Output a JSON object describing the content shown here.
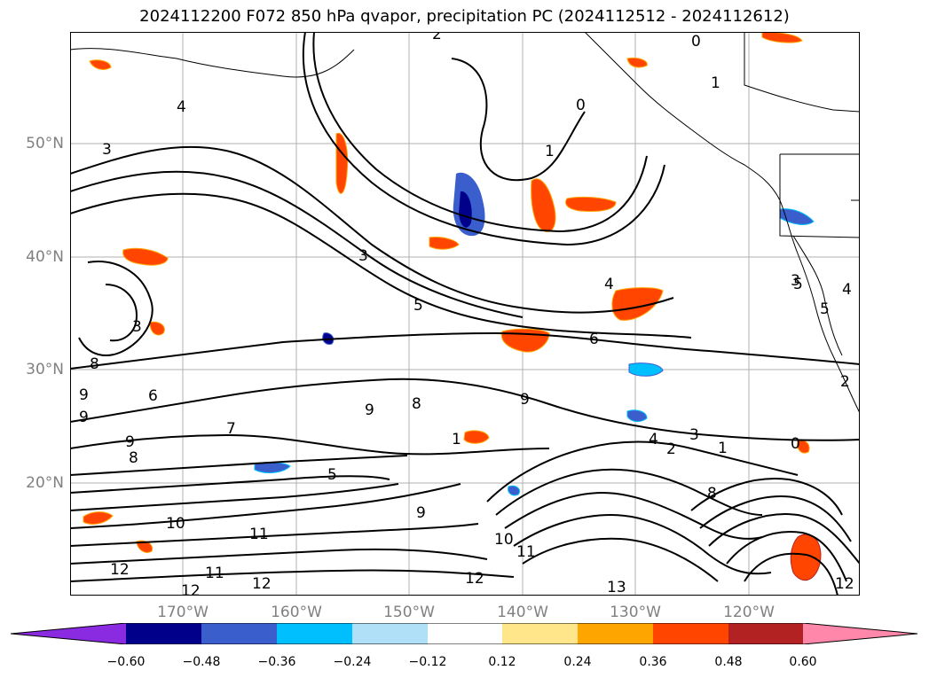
{
  "title": "2024112200 F072 850 hPa qvapor, precipitation PC (2024112512 - 2024112612)",
  "latitude_labels": [
    "50°N",
    "40°N",
    "30°N",
    "20°N"
  ],
  "longitude_labels": [
    "170°W",
    "160°W",
    "150°W",
    "140°W",
    "130°W",
    "120°W"
  ],
  "colorbar": {
    "ticks": [
      "−0.60",
      "−0.48",
      "−0.36",
      "−0.24",
      "−0.12",
      "0.12",
      "0.24",
      "0.36",
      "0.48",
      "0.60"
    ],
    "colors": [
      "#8a2be2",
      "#00008b",
      "#3a5fcd",
      "#00bfff",
      "#b0e0f8",
      "#ffffff",
      "#ffe68a",
      "#ffa500",
      "#ff4500",
      "#b22222",
      "#ff88aa"
    ]
  },
  "contour_labels": [
    "2",
    "0",
    "1",
    "0",
    "1",
    "4",
    "3",
    "3",
    "4",
    "3",
    "5",
    "6",
    "8",
    "9",
    "9",
    "6",
    "8",
    "9",
    "7",
    "5",
    "4",
    "3",
    "2",
    "1",
    "0",
    "9",
    "9",
    "8",
    "1",
    "10",
    "11",
    "12",
    "11",
    "12",
    "12",
    "10",
    "11",
    "12",
    "13",
    "9",
    "8",
    "5",
    "4",
    "2",
    "3",
    "5",
    "12"
  ]
}
